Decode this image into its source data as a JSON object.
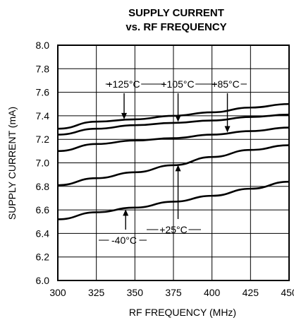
{
  "chart_data": {
    "type": "line",
    "title": [
      "SUPPLY CURRENT",
      "vs. RF FREQUENCY"
    ],
    "xlabel": "RF FREQUENCY (MHz)",
    "ylabel": "SUPPLY CURRENT (mA)",
    "xlim": [
      300,
      450
    ],
    "ylim": [
      6.0,
      8.0
    ],
    "x_ticks": [
      "300",
      "325",
      "350",
      "375",
      "400",
      "425",
      "450"
    ],
    "y_ticks": [
      "6.0",
      "6.2",
      "6.4",
      "6.6",
      "6.8",
      "7.0",
      "7.2",
      "7.4",
      "7.6",
      "7.8",
      "8.0"
    ],
    "grid": true,
    "x": [
      300,
      325,
      350,
      375,
      400,
      425,
      450
    ],
    "series": [
      {
        "name": "+125°C",
        "values": [
          7.29,
          7.35,
          7.37,
          7.4,
          7.43,
          7.47,
          7.5
        ]
      },
      {
        "name": "+105°C",
        "values": [
          7.24,
          7.29,
          7.32,
          7.34,
          7.36,
          7.39,
          7.41
        ]
      },
      {
        "name": "+85°C",
        "values": [
          7.1,
          7.16,
          7.19,
          7.21,
          7.24,
          7.27,
          7.3
        ]
      },
      {
        "name": "+25°C",
        "values": [
          6.81,
          6.87,
          6.92,
          6.98,
          7.05,
          7.11,
          7.15
        ]
      },
      {
        "name": "-40°C",
        "values": [
          6.52,
          6.58,
          6.62,
          6.67,
          6.72,
          6.78,
          6.84
        ]
      }
    ]
  }
}
